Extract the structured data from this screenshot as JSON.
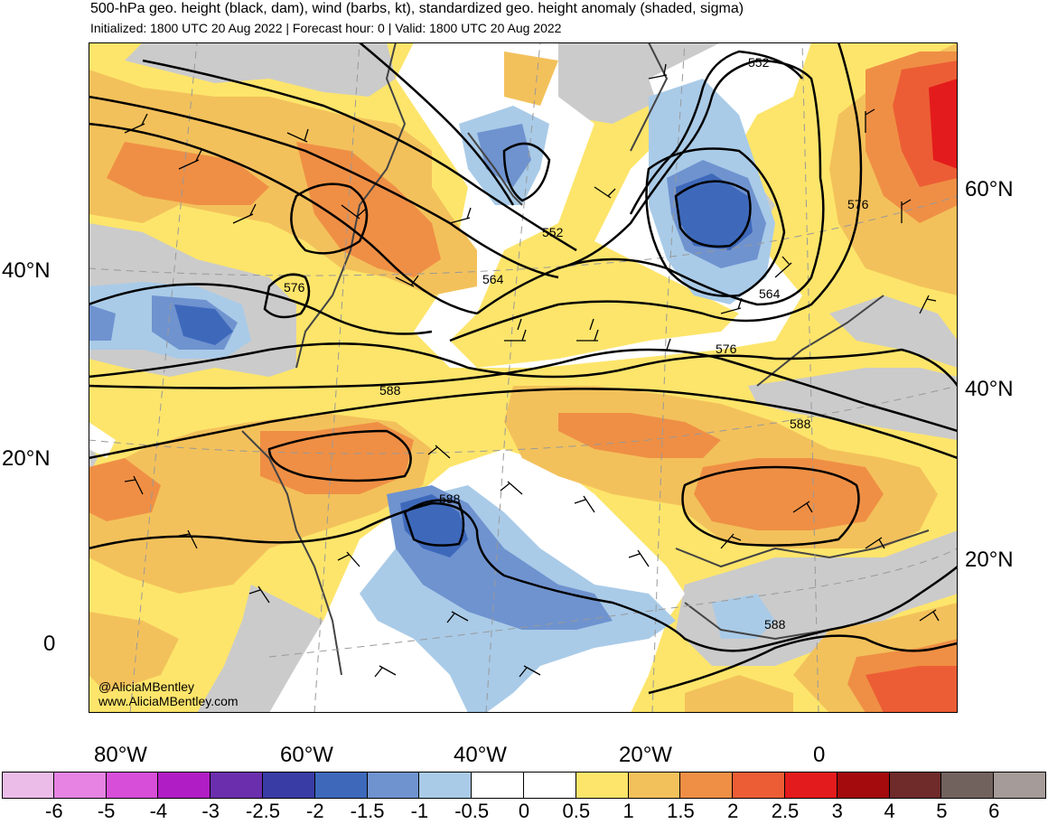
{
  "title": "500-hPa geo. height (black, dam), wind (barbs, kt), standardized geo. height anomaly (shaded, sigma)",
  "subtitle": "Initialized: 1800 UTC 20 Aug 2022 | Forecast hour: 0 | Valid: 1800 UTC 20 Aug 2022",
  "credit": {
    "handle": "@AliciaMBentley",
    "website": "www.AliciaMBentley.com"
  },
  "lat_labels_left": [
    "40°N",
    "20°N",
    "0"
  ],
  "lat_labels_right": [
    "60°N",
    "40°N",
    "20°N"
  ],
  "lon_labels": [
    "80°W",
    "60°W",
    "40°W",
    "20°W",
    "0"
  ],
  "contour_labels": [
    "552",
    "552",
    "564",
    "564",
    "576",
    "576",
    "576",
    "588",
    "588",
    "588",
    "588"
  ],
  "colorbar": {
    "labels": [
      "-6",
      "-5",
      "-4",
      "-3",
      "-2.5",
      "-2",
      "-1.5",
      "-1",
      "-0.5",
      "0",
      "0.5",
      "1",
      "1.5",
      "2",
      "2.5",
      "3",
      "4",
      "5",
      "6"
    ],
    "colors": [
      "#ecbce8",
      "#e683e3",
      "#d74fd9",
      "#b11dc4",
      "#6b2fad",
      "#3a3ca6",
      "#3e69bb",
      "#6f93cf",
      "#a9cbe8",
      "#ffffff",
      "#ffffff",
      "#fde56b",
      "#f3c15b",
      "#ef8f45",
      "#ec5d35",
      "#e31b1c",
      "#a30b0d",
      "#6f2a2a",
      "#72625e",
      "#a59b98"
    ]
  },
  "shading_colors": {
    "land": "#cbcbcb",
    "ocean_neutral": "#ffffff",
    "anom_pos_05": "#fde56b",
    "anom_pos_1": "#f3c15b",
    "anom_pos_15": "#ef8f45",
    "anom_pos_2": "#ec5d35",
    "anom_pos_25": "#e31b1c",
    "anom_neg_05": "#a9cbe8",
    "anom_neg_1": "#6f93cf",
    "anom_neg_15": "#3e69bb",
    "anom_neg_2": "#3a3ca6"
  }
}
